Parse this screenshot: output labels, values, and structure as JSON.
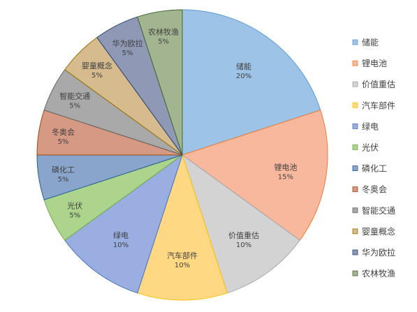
{
  "chart_data": {
    "type": "pie",
    "title": "",
    "legend_position": "right",
    "start_angle_deg": 0,
    "direction": "clockwise",
    "slices": [
      {
        "label": "储能",
        "value": 20,
        "display": "20%",
        "color": "#9dc3e6",
        "stroke": "#5b9bd5"
      },
      {
        "label": "锂电池",
        "value": 15,
        "display": "15%",
        "color": "#f8b89e",
        "stroke": "#ed7d31"
      },
      {
        "label": "价值重估",
        "value": 10,
        "display": "10%",
        "color": "#d3d3d3",
        "stroke": "#a5a5a5"
      },
      {
        "label": "汽车部件",
        "value": 10,
        "display": "10%",
        "color": "#ffd884",
        "stroke": "#ffc000"
      },
      {
        "label": "绿电",
        "value": 10,
        "display": "10%",
        "color": "#9aaee2",
        "stroke": "#4472c4"
      },
      {
        "label": "光伏",
        "value": 5,
        "display": "5%",
        "color": "#acd48c",
        "stroke": "#70ad47"
      },
      {
        "label": "磷化工",
        "value": 5,
        "display": "5%",
        "color": "#8aa5cc",
        "stroke": "#255e91"
      },
      {
        "label": "冬奥会",
        "value": 5,
        "display": "5%",
        "color": "#d69a84",
        "stroke": "#9e480e"
      },
      {
        "label": "智能交通",
        "value": 5,
        "display": "5%",
        "color": "#a9a9a9",
        "stroke": "#636363"
      },
      {
        "label": "婴童概念",
        "value": 5,
        "display": "5%",
        "color": "#d5bb8e",
        "stroke": "#997300"
      },
      {
        "label": "华为欧拉",
        "value": 5,
        "display": "5%",
        "color": "#8f98b5",
        "stroke": "#264478"
      },
      {
        "label": "农林牧渔",
        "value": 5,
        "display": "5%",
        "color": "#a3b590",
        "stroke": "#43682b"
      }
    ]
  }
}
